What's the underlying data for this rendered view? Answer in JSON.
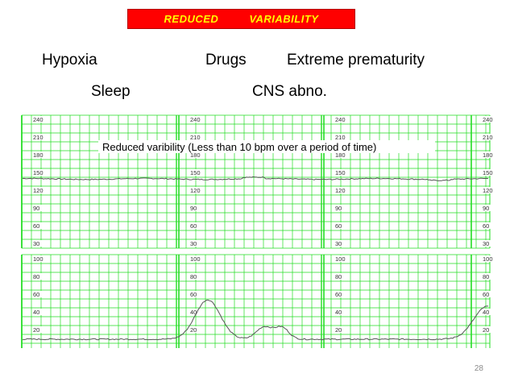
{
  "banner": {
    "word1": "REDUCED",
    "word2": "VARIABILITY"
  },
  "causes": [
    "Hypoxia",
    "Drugs",
    "Extreme prematurity",
    "Sleep",
    "CNS abno."
  ],
  "fhr_strip": {
    "annotation": "Reduced varibility (Less than 10 bpm over a period of time)",
    "scale_labels": [
      "240",
      "210",
      "180",
      "150",
      "120",
      "90",
      "60",
      "30"
    ]
  },
  "uc_strip": {
    "scale_labels": [
      "100",
      "80",
      "60",
      "40",
      "20"
    ]
  },
  "colors": {
    "grid": "#22dd22",
    "trace": "#555555",
    "banner": "#ff0000",
    "banner_text": "#ffff00"
  },
  "page_number": "28"
}
